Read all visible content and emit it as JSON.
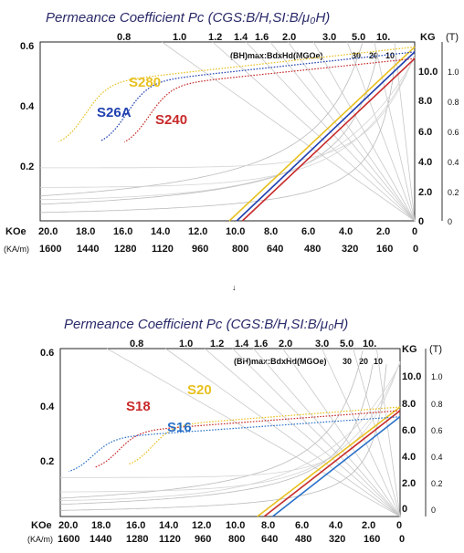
{
  "chart_data": [
    {
      "type": "line",
      "title": "Permeance Coefficient Pc (CGS:B/H,SI:B/μ₀H)",
      "bh_label": "(BH)max:BdxHd(MGOe)",
      "bh_values": [
        "30",
        "20",
        "10"
      ],
      "pc_ticks": [
        "0.8",
        "1.0",
        "1.2",
        "1.4",
        "1.6",
        "2.0",
        "3.0",
        "5.0",
        "10."
      ],
      "y_left_ticks": [
        "0.6",
        "0.4",
        "0.2"
      ],
      "y_kg_label": "KG",
      "y_t_label": "(T)",
      "y_kg_ticks": [
        "10.0",
        "8.0",
        "6.0",
        "4.0",
        "2.0",
        "0"
      ],
      "y_t_ticks": [
        "1.0",
        "0.8",
        "0.6",
        "0.4",
        "0.2",
        "0"
      ],
      "x_koe_label": "KOe",
      "x_koe_ticks": [
        "20.0",
        "18.0",
        "16.0",
        "14.0",
        "12.0",
        "10.0",
        "8.0",
        "6.0",
        "4.0",
        "2.0",
        "0"
      ],
      "x_kam_label": "(KA/m)",
      "x_kam_ticks": [
        "1600",
        "1440",
        "1280",
        "1120",
        "960",
        "800",
        "640",
        "480",
        "320",
        "160",
        "0"
      ],
      "xlim": [
        20,
        0
      ],
      "ylim": [
        0,
        10.8
      ],
      "series": [
        {
          "name": "S280",
          "color": "#e8c020",
          "br": 10.5,
          "hcb": 9.9,
          "hcj": 19.0
        },
        {
          "name": "S26A",
          "color": "#2040b0",
          "br": 10.2,
          "hcb": 9.5,
          "hcj": 16.8
        },
        {
          "name": "S240",
          "color": "#c82a2a",
          "br": 9.8,
          "hcb": 9.2,
          "hcj": 15.6
        }
      ]
    },
    {
      "type": "line",
      "title": "Permeance Coefficient Pc (CGS:B/H,SI:B/μ₀H)",
      "bh_label": "(BH)max:BdxHd(MGOe)",
      "bh_values": [
        "30",
        "20",
        "10"
      ],
      "pc_ticks": [
        "0.8",
        "1.0",
        "1.2",
        "1.4",
        "1.6",
        "2.0",
        "3.0",
        "5.0",
        "10."
      ],
      "y_left_ticks": [
        "0.6",
        "0.4",
        "0.2"
      ],
      "y_kg_label": "KG",
      "y_t_label": "(T)",
      "y_kg_ticks": [
        "10.0",
        "8.0",
        "6.0",
        "4.0",
        "2.0",
        "0"
      ],
      "y_t_ticks": [
        "1.0",
        "0.8",
        "0.6",
        "0.4",
        "0.2",
        "0"
      ],
      "x_koe_label": "KOe",
      "x_koe_ticks": [
        "20.0",
        "18.0",
        "16.0",
        "14.0",
        "12.0",
        "10.0",
        "8.0",
        "6.0",
        "4.0",
        "2.0",
        "0"
      ],
      "x_kam_label": "(KA/m)",
      "x_kam_ticks": [
        "1600",
        "1440",
        "1280",
        "1120",
        "960",
        "800",
        "640",
        "480",
        "320",
        "160",
        "0"
      ],
      "xlim": [
        20,
        0
      ],
      "ylim": [
        0,
        13.8
      ],
      "series": [
        {
          "name": "S20",
          "color": "#e8c020",
          "br": 9.0,
          "hcb": 8.4,
          "hcj": 16.0
        },
        {
          "name": "S18",
          "color": "#c82a2a",
          "br": 8.7,
          "hcb": 8.0,
          "hcj": 18.0
        },
        {
          "name": "S16",
          "color": "#2a70c8",
          "br": 8.2,
          "hcb": 7.5,
          "hcj": 19.5
        }
      ]
    }
  ],
  "separator": "↓"
}
